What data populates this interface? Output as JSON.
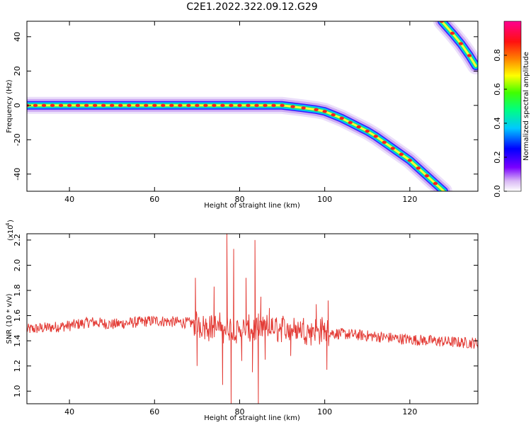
{
  "title": "C2E1.2022.322.09.12.G29",
  "chart_data": [
    {
      "type": "heatmap",
      "xlabel": "Height of straight line (km)",
      "ylabel": "Frequency (Hz)",
      "xlim": [
        30,
        136
      ],
      "ylim": [
        -50,
        49
      ],
      "x_ticks": [
        "40",
        "60",
        "80",
        "100",
        "120"
      ],
      "y_ticks": [
        "40",
        "20",
        "0",
        "-20",
        "-40"
      ],
      "ridges": [
        {
          "name": "main",
          "points": [
            [
              30,
              0
            ],
            [
              40,
              0
            ],
            [
              50,
              0
            ],
            [
              60,
              0
            ],
            [
              70,
              0
            ],
            [
              80,
              0
            ],
            [
              90,
              0
            ],
            [
              95,
              -1.5
            ],
            [
              98,
              -2.5
            ],
            [
              100,
              -3.5
            ],
            [
              102,
              -5.5
            ],
            [
              104,
              -7.5
            ],
            [
              106,
              -10
            ],
            [
              108,
              -12.5
            ],
            [
              110,
              -15
            ],
            [
              112,
              -18
            ],
            [
              114,
              -21.5
            ],
            [
              116,
              -25
            ],
            [
              118,
              -28.5
            ],
            [
              120,
              -32
            ],
            [
              122,
              -36.5
            ],
            [
              124,
              -41
            ],
            [
              126,
              -45.5
            ],
            [
              128,
              -50
            ]
          ]
        },
        {
          "name": "upper",
          "points": [
            [
              127.5,
              49
            ],
            [
              130,
              42
            ],
            [
              132,
              36
            ],
            [
              134,
              29
            ],
            [
              135.5,
              23
            ]
          ]
        }
      ],
      "colorbar": {
        "label": "Normalized spectral amplitude",
        "range": [
          0,
          1
        ],
        "ticks": [
          "0.0",
          "0.2",
          "0.4",
          "0.6",
          "0.8"
        ]
      }
    },
    {
      "type": "line",
      "xlabel": "Height of straight line (km)",
      "ylabel": "SNR (10 * v/v)",
      "y_exponent_label": "(x10",
      "y_exponent_power": "4",
      "xlim": [
        30,
        136
      ],
      "ylim": [
        0.9,
        2.25
      ],
      "x_ticks": [
        "40",
        "60",
        "80",
        "100",
        "120"
      ],
      "y_ticks": [
        "1.0",
        "1.2",
        "1.4",
        "1.6",
        "1.8",
        "2.0",
        "2.2"
      ],
      "series": [
        {
          "color": "#e33b35",
          "baseline_points": [
            [
              30,
              1.49
            ],
            [
              40,
              1.52
            ],
            [
              45,
              1.55
            ],
            [
              50,
              1.53
            ],
            [
              60,
              1.56
            ],
            [
              69,
              1.54
            ],
            [
              72,
              1.52
            ],
            [
              80,
              1.48
            ],
            [
              90,
              1.5
            ],
            [
              100,
              1.48
            ],
            [
              102,
              1.46
            ],
            [
              110,
              1.44
            ],
            [
              120,
              1.41
            ],
            [
              130,
              1.39
            ],
            [
              136,
              1.38
            ]
          ],
          "peaks": [
            [
              69.6,
              1.9
            ],
            [
              70.0,
              1.2
            ],
            [
              74.0,
              1.83
            ],
            [
              76.0,
              1.05
            ],
            [
              77.0,
              2.25
            ],
            [
              78.0,
              0.9
            ],
            [
              78.6,
              2.13
            ],
            [
              80.5,
              1.24
            ],
            [
              81.5,
              1.9
            ],
            [
              83.0,
              1.15
            ],
            [
              83.6,
              2.2
            ],
            [
              84.4,
              0.9
            ],
            [
              85.0,
              1.75
            ],
            [
              86.0,
              1.25
            ],
            [
              87.0,
              1.66
            ],
            [
              92.0,
              1.28
            ],
            [
              98.0,
              1.69
            ],
            [
              100.5,
              1.17
            ],
            [
              100.8,
              1.72
            ]
          ],
          "noise_amplitude": 0.045
        }
      ]
    }
  ]
}
